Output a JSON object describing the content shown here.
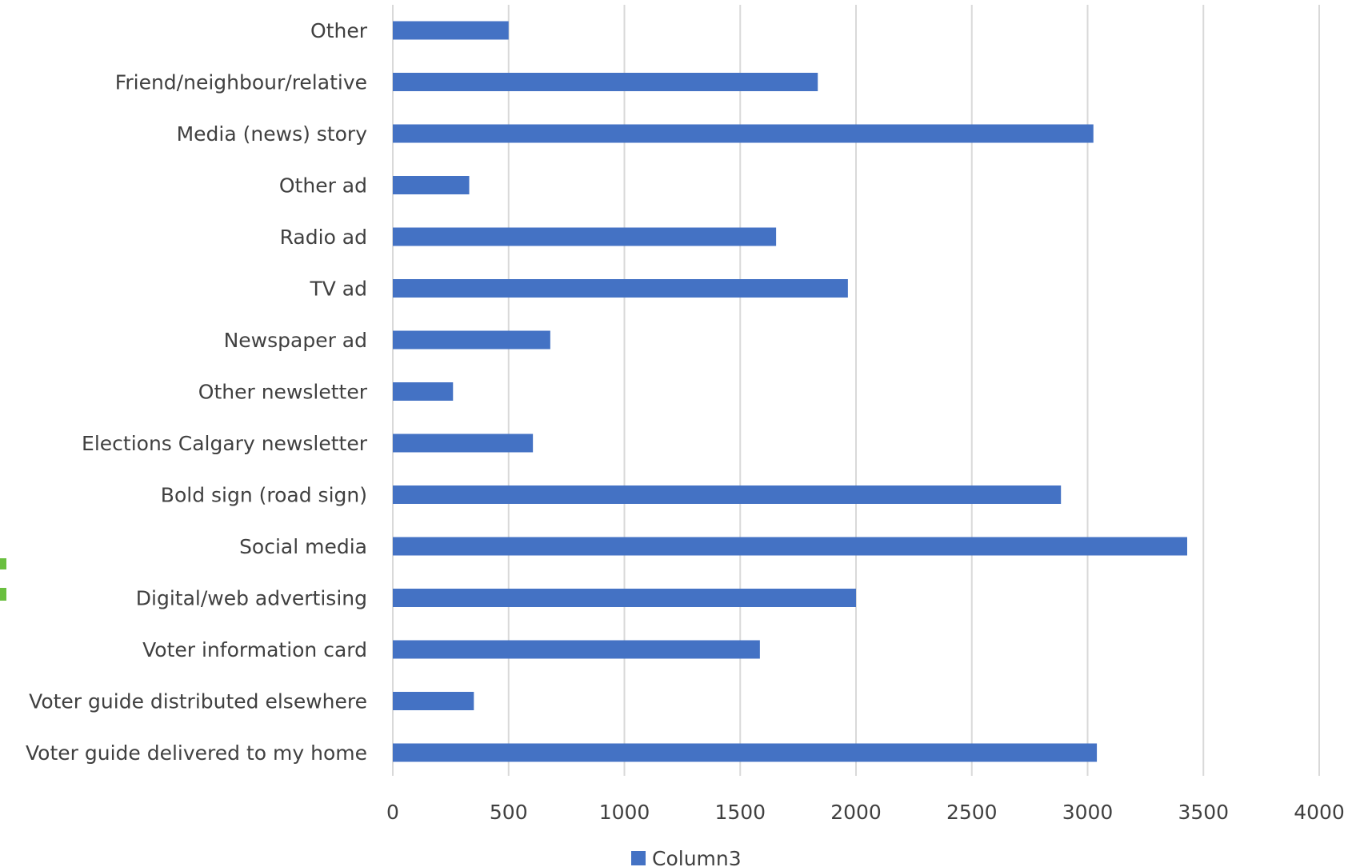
{
  "chart_data": {
    "type": "bar",
    "orientation": "horizontal",
    "categories": [
      "Other",
      "Friend/neighbour/relative",
      "Media (news) story",
      "Other ad",
      "Radio ad",
      "TV ad",
      "Newspaper ad",
      "Other newsletter",
      "Elections Calgary newsletter",
      "Bold sign (road sign)",
      "Social media",
      "Digital/web advertising",
      "Voter information card",
      "Voter guide distributed elsewhere",
      "Voter guide delivered to my home"
    ],
    "series": [
      {
        "name": "Column3",
        "color": "#4472c4",
        "values": [
          500,
          1835,
          3025,
          330,
          1655,
          1965,
          680,
          260,
          605,
          2885,
          3430,
          2000,
          1585,
          350,
          3040
        ]
      }
    ],
    "title": "",
    "xlabel": "",
    "ylabel": "",
    "xlim": [
      0,
      4000
    ],
    "xticks": [
      0,
      500,
      1000,
      1500,
      2000,
      2500,
      3000,
      3500,
      4000
    ],
    "xtick_labels": [
      "0",
      "500",
      "1000",
      "1500",
      "2000",
      "2500",
      "3000",
      "3500",
      "4000"
    ],
    "grid": "vertical",
    "legend": {
      "position": "bottom",
      "entries": [
        "Column3"
      ]
    }
  },
  "colors": {
    "bar": "#4472c4",
    "grid": "#d9d9d9",
    "text": "#404040",
    "edge_mark": "#6abf3f"
  }
}
